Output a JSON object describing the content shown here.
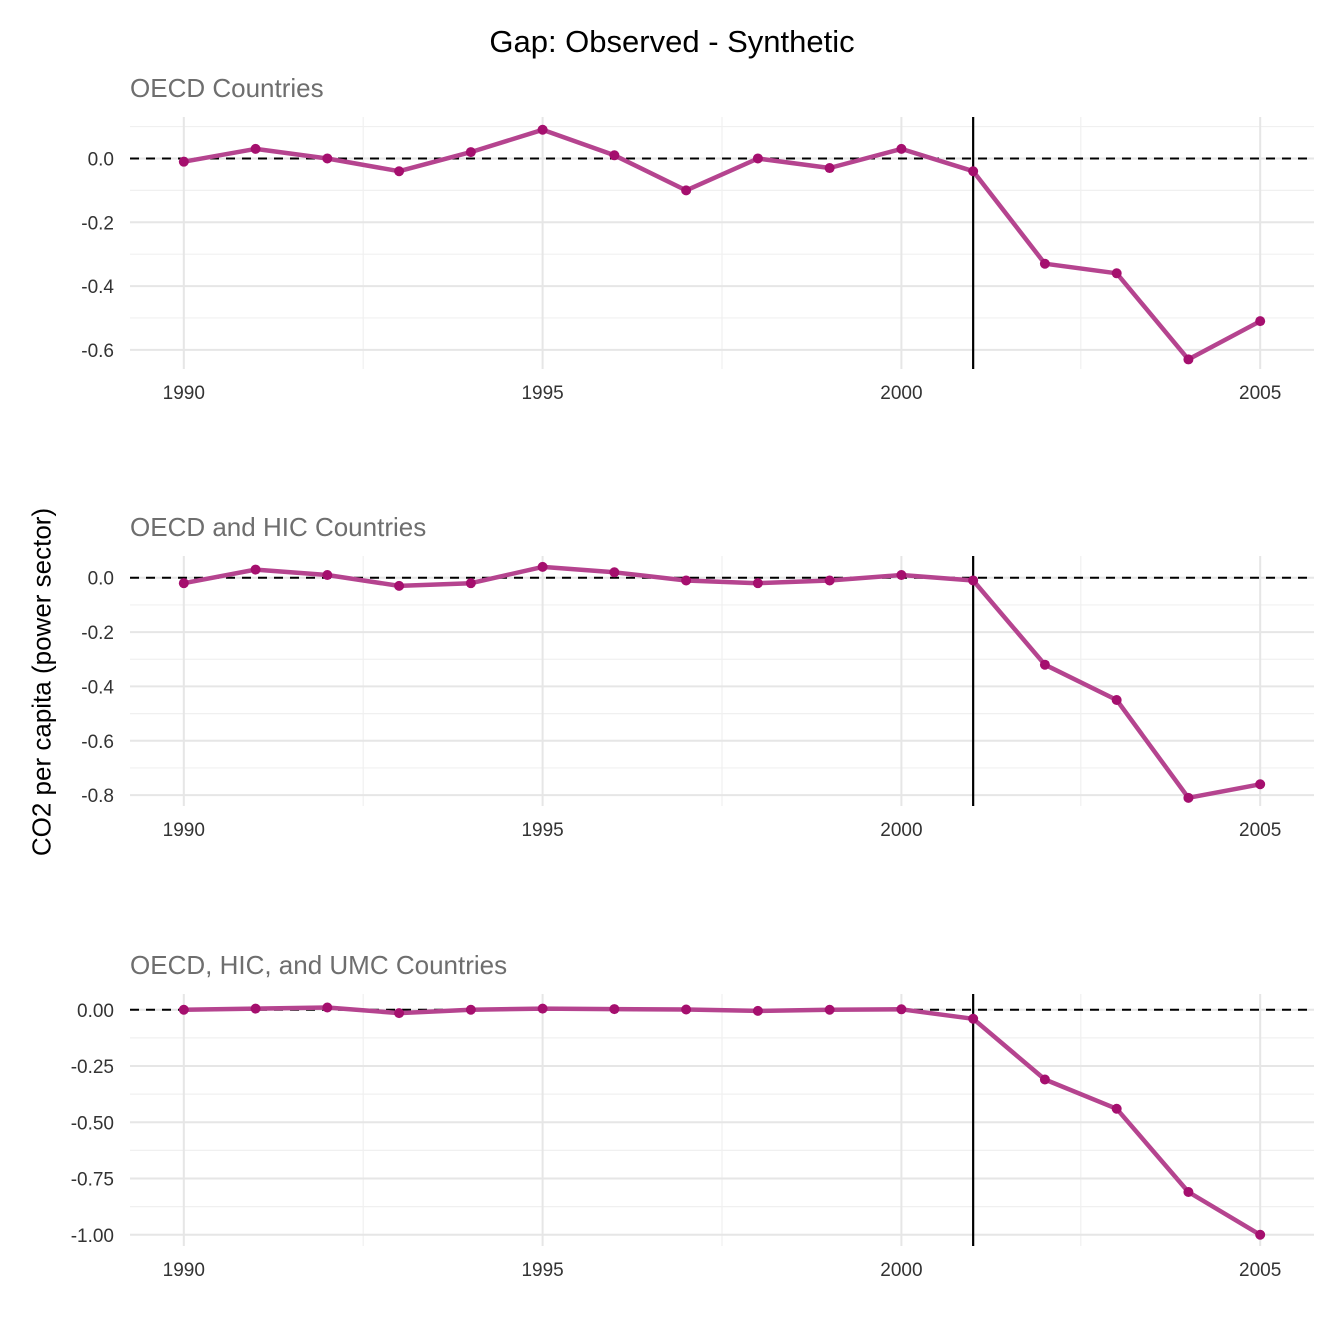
{
  "figure": {
    "title": "Gap: Observed - Synthetic",
    "ylabel": "CO2 per capita (power sector)"
  },
  "colors": {
    "line": "#b5448f",
    "point": "#a50f6e",
    "reference_line": "#000000",
    "grid_major": "#e6e6e6",
    "grid_minor": "#f0f0f0",
    "subtitle": "#6e6e6e",
    "tick_label": "#333333"
  },
  "chart_data": [
    {
      "type": "line",
      "subtitle": "OECD Countries",
      "x": [
        1990,
        1991,
        1992,
        1993,
        1994,
        1995,
        1996,
        1997,
        1998,
        1999,
        2000,
        2001,
        2002,
        2003,
        2004,
        2005
      ],
      "values": [
        -0.01,
        0.03,
        0.0,
        -0.04,
        0.02,
        0.09,
        0.01,
        -0.1,
        0.0,
        -0.03,
        0.03,
        -0.04,
        -0.33,
        -0.36,
        -0.63,
        -0.51
      ],
      "xlim": [
        1989.25,
        2005.75
      ],
      "ylim": [
        -0.66,
        0.13
      ],
      "x_ticks": [
        1990,
        1995,
        2000,
        2005
      ],
      "x_tick_labels": [
        "1990",
        "1995",
        "2000",
        "2005"
      ],
      "y_ticks": [
        0.0,
        -0.2,
        -0.4,
        -0.6
      ],
      "y_tick_labels": [
        "0.0",
        "-0.2",
        "-0.4",
        "-0.6"
      ],
      "zero_reference": 0,
      "treatment_year": 2001,
      "grid": true
    },
    {
      "type": "line",
      "subtitle": "OECD and HIC Countries",
      "x": [
        1990,
        1991,
        1992,
        1993,
        1994,
        1995,
        1996,
        1997,
        1998,
        1999,
        2000,
        2001,
        2002,
        2003,
        2004,
        2005
      ],
      "values": [
        -0.02,
        0.03,
        0.01,
        -0.03,
        -0.02,
        0.04,
        0.02,
        -0.01,
        -0.02,
        -0.01,
        0.01,
        -0.01,
        -0.32,
        -0.45,
        -0.81,
        -0.76
      ],
      "xlim": [
        1989.25,
        2005.75
      ],
      "ylim": [
        -0.84,
        0.08
      ],
      "x_ticks": [
        1990,
        1995,
        2000,
        2005
      ],
      "x_tick_labels": [
        "1990",
        "1995",
        "2000",
        "2005"
      ],
      "y_ticks": [
        0.0,
        -0.2,
        -0.4,
        -0.6,
        -0.8
      ],
      "y_tick_labels": [
        "0.0",
        "-0.2",
        "-0.4",
        "-0.6",
        "-0.8"
      ],
      "zero_reference": 0,
      "treatment_year": 2001,
      "grid": true
    },
    {
      "type": "line",
      "subtitle": "OECD, HIC, and UMC Countries",
      "x": [
        1990,
        1991,
        1992,
        1993,
        1994,
        1995,
        1996,
        1997,
        1998,
        1999,
        2000,
        2001,
        2002,
        2003,
        2004,
        2005
      ],
      "values": [
        0.0,
        0.005,
        0.01,
        -0.015,
        0.0,
        0.005,
        0.003,
        0.001,
        -0.005,
        0.0,
        0.002,
        -0.04,
        -0.31,
        -0.44,
        -0.81,
        -1.0
      ],
      "xlim": [
        1989.25,
        2005.75
      ],
      "ylim": [
        -1.05,
        0.07
      ],
      "x_ticks": [
        1990,
        1995,
        2000,
        2005
      ],
      "x_tick_labels": [
        "1990",
        "1995",
        "2000",
        "2005"
      ],
      "y_ticks": [
        0.0,
        -0.25,
        -0.5,
        -0.75,
        -1.0
      ],
      "y_tick_labels": [
        "0.00",
        "-0.25",
        "-0.50",
        "-0.75",
        "-1.00"
      ],
      "zero_reference": 0,
      "treatment_year": 2001,
      "grid": true
    }
  ]
}
